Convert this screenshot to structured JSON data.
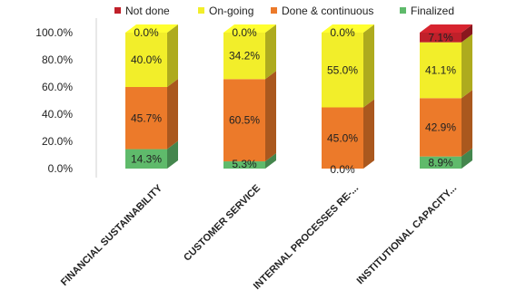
{
  "chart_data": {
    "type": "bar",
    "stacked": true,
    "three_d": true,
    "title": "",
    "xlabel": "",
    "ylabel": "",
    "ylim": [
      0,
      100
    ],
    "yticks": [
      "0.0%",
      "20.0%",
      "40.0%",
      "60.0%",
      "80.0%",
      "100.0%"
    ],
    "legend_position": "top",
    "grid": false,
    "categories": [
      "FINANCIAL SUSTAINABILITY",
      "CUSTOMER SERVICE",
      "INTERNAL PROCESSES RE-...",
      "INSTITUTIONAL CAPACITY..."
    ],
    "series": [
      {
        "name": "Not done",
        "color": "#c0202a",
        "values": [
          0.0,
          0.0,
          0.0,
          7.1
        ],
        "labels": [
          "0.0%",
          "0.0%",
          "0.0%",
          "7.1%"
        ]
      },
      {
        "name": "On-going",
        "color": "#f2ee2a",
        "values": [
          40.0,
          34.2,
          55.0,
          41.1
        ],
        "labels": [
          "40.0%",
          "34.2%",
          "55.0%",
          "41.1%"
        ]
      },
      {
        "name": "Done & continuous",
        "color": "#ec7a2a",
        "values": [
          45.7,
          60.5,
          45.0,
          42.9
        ],
        "labels": [
          "45.7%",
          "60.5%",
          "45.0%",
          "42.9%"
        ]
      },
      {
        "name": "Finalized",
        "color": "#5fba6b",
        "values": [
          14.3,
          5.3,
          0.0,
          8.9
        ],
        "labels": [
          "14.3%",
          "5.3%",
          "0.0%",
          "8.9%"
        ]
      }
    ]
  }
}
